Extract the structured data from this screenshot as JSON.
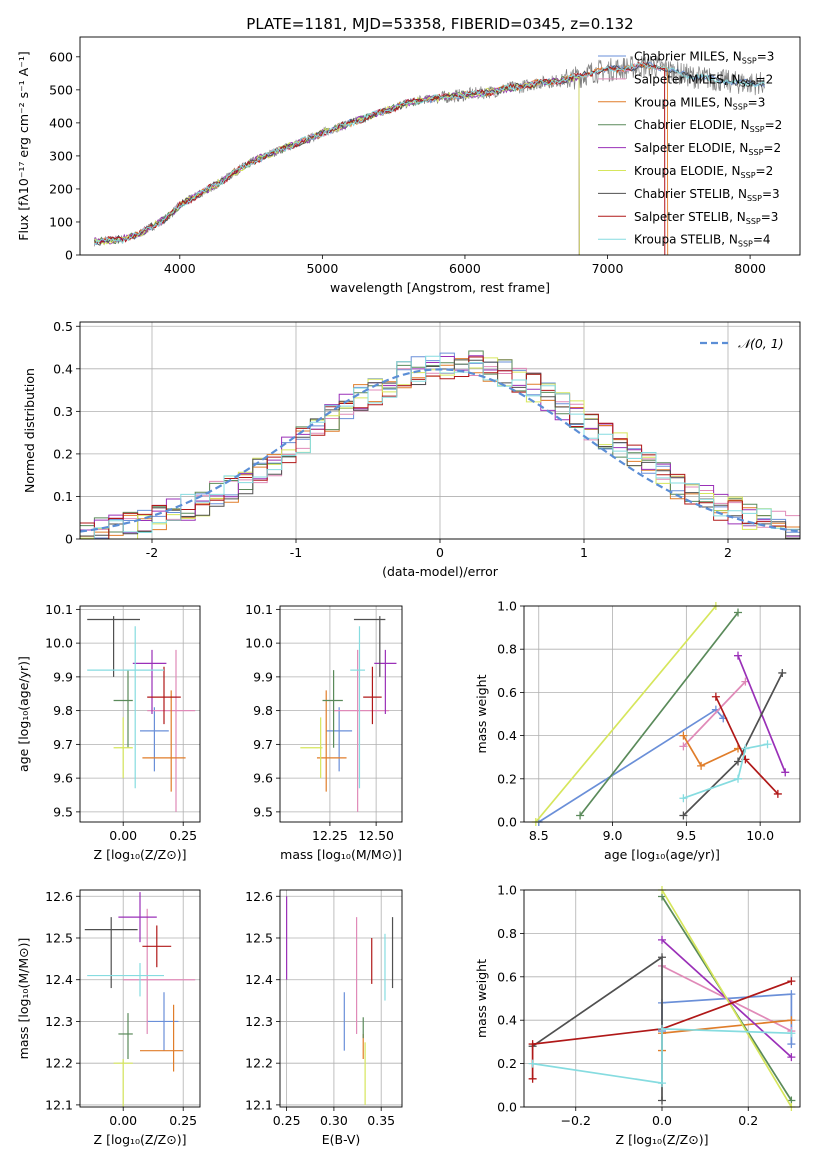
{
  "title": "PLATE=1181, MJD=53358, FIBERID=0345, z=0.132",
  "colors": {
    "Chabrier MILES": "#6a8fd8",
    "Salpeter MILES": "#e08ab8",
    "Kroupa MILES": "#e07d2a",
    "Chabrier ELODIE": "#5a8a5a",
    "Salpeter ELODIE": "#9a30b8",
    "Kroupa ELODIE": "#d6e65c",
    "Chabrier STELIB": "#505050",
    "Salpeter STELIB": "#b01818",
    "Kroupa STELIB": "#86dce0",
    "normal_curve": "#5b8ed6",
    "data": "#7f7f7f",
    "grid": "#b0b0b0"
  },
  "chart_data": [
    {
      "id": "spectrum",
      "type": "line",
      "title": "PLATE=1181, MJD=53358, FIBERID=0345, z=0.132",
      "xlabel": "wavelength [Angstrom, rest frame]",
      "ylabel": "Flux [fλ10⁻¹⁷ erg cm⁻² s⁻¹ A⁻¹]",
      "xlim": [
        3300,
        8350
      ],
      "ylim": [
        0,
        660
      ],
      "xticks": [
        4000,
        5000,
        6000,
        7000,
        8000
      ],
      "yticks": [
        0,
        100,
        200,
        300,
        400,
        500,
        600
      ],
      "grid": false,
      "legend_position": "right",
      "continuum": {
        "x": [
          3400,
          3600,
          3700,
          3800,
          3900,
          4000,
          4100,
          4200,
          4300,
          4400,
          4500,
          4600,
          4700,
          4800,
          4900,
          5000,
          5100,
          5200,
          5300,
          5400,
          5500,
          5600,
          5700,
          5800,
          5900,
          6000,
          6100,
          6200,
          6300,
          6400,
          6500,
          6600,
          6700,
          6800,
          6900,
          7000,
          7100,
          7200,
          7300,
          7400,
          7500,
          7600,
          7700,
          7800,
          7900,
          8000,
          8100
        ],
        "y": [
          40,
          48,
          60,
          85,
          110,
          150,
          175,
          200,
          225,
          255,
          280,
          300,
          318,
          335,
          350,
          370,
          385,
          400,
          415,
          430,
          445,
          460,
          470,
          475,
          480,
          485,
          490,
          495,
          505,
          510,
          520,
          525,
          530,
          540,
          555,
          560,
          565,
          570,
          575,
          565,
          550,
          540,
          535,
          528,
          522,
          520,
          520
        ]
      },
      "series": [
        {
          "name": "Chabrier MILES",
          "n_ssp": "3",
          "color": "#6a8fd8",
          "xmax": 8100
        },
        {
          "name": "Salpeter MILES",
          "n_ssp": "2",
          "color": "#e08ab8",
          "xmax": 7400
        },
        {
          "name": "Kroupa MILES",
          "n_ssp": "3",
          "color": "#e07d2a",
          "xmax": 7420
        },
        {
          "name": "Chabrier ELODIE",
          "n_ssp": "2",
          "color": "#5a8a5a",
          "xmax": 6800
        },
        {
          "name": "Salpeter ELODIE",
          "n_ssp": "2",
          "color": "#9a30b8",
          "xmax": 6800
        },
        {
          "name": "Kroupa ELODIE",
          "n_ssp": "2",
          "color": "#d6e65c",
          "xmax": 6800
        },
        {
          "name": "Chabrier STELIB",
          "n_ssp": "3",
          "color": "#505050",
          "xmax": 8100
        },
        {
          "name": "Salpeter STELIB",
          "n_ssp": "3",
          "color": "#b01818",
          "xmax": 7400
        },
        {
          "name": "Kroupa STELIB",
          "n_ssp": "4",
          "color": "#86dce0",
          "xmax": 8100
        }
      ]
    },
    {
      "id": "residuals",
      "type": "line",
      "xlabel": "(data-model)/error",
      "ylabel": "Normed distribution",
      "xlim": [
        -2.5,
        2.5
      ],
      "ylim": [
        0,
        0.51
      ],
      "xticks": [
        -2,
        -1,
        0,
        1,
        2
      ],
      "yticks": [
        0.0,
        0.1,
        0.2,
        0.3,
        0.4,
        0.5
      ],
      "grid": true,
      "legend": [
        {
          "name": "𝒩(0, 1)",
          "style": "dashed"
        }
      ],
      "legend_position": "upper right",
      "bins": {
        "start": -2.5,
        "width": 0.1
      }
    },
    {
      "id": "age_vs_Z",
      "type": "scatter",
      "xlabel": "Z [log₁₀(Z/Z⊙)]",
      "ylabel": "age  [log₁₀(age/yr)]",
      "xlim": [
        -0.18,
        0.32
      ],
      "ylim": [
        9.47,
        10.11
      ],
      "xticks": [
        "0.00",
        "0.25"
      ],
      "yticks": [
        "9.5",
        "9.6",
        "9.7",
        "9.8",
        "9.9",
        "10.0",
        "10.1"
      ],
      "grid": true,
      "points": [
        {
          "name": "Chabrier MILES",
          "x": 0.13,
          "y": 9.74,
          "xerr": [
            0.06,
            0.06
          ],
          "yerr": [
            0.12,
            0.07
          ]
        },
        {
          "name": "Salpeter MILES",
          "x": 0.22,
          "y": 9.8,
          "xerr": [
            0.12,
            0.08
          ],
          "yerr": [
            0.3,
            0.18
          ]
        },
        {
          "name": "Kroupa MILES",
          "x": 0.2,
          "y": 9.66,
          "xerr": [
            0.12,
            0.06
          ],
          "yerr": [
            0.1,
            0.2
          ]
        },
        {
          "name": "Chabrier ELODIE",
          "x": 0.02,
          "y": 9.83,
          "xerr": [
            0.06,
            0.02
          ],
          "yerr": [
            0.14,
            0.09
          ]
        },
        {
          "name": "Salpeter ELODIE",
          "x": 0.12,
          "y": 9.94,
          "xerr": [
            0.08,
            0.06
          ],
          "yerr": [
            0.15,
            0.04
          ]
        },
        {
          "name": "Kroupa ELODIE",
          "x": 0.0,
          "y": 9.69,
          "xerr": [
            0.04,
            0.04
          ],
          "yerr": [
            0.09,
            0.09
          ]
        },
        {
          "name": "Chabrier STELIB",
          "x": -0.04,
          "y": 10.07,
          "xerr": [
            0.11,
            0.11
          ],
          "yerr": [
            0.17,
            0.01
          ]
        },
        {
          "name": "Salpeter STELIB",
          "x": 0.17,
          "y": 9.84,
          "xerr": [
            0.07,
            0.07
          ],
          "yerr": [
            0.08,
            0.09
          ]
        },
        {
          "name": "Kroupa STELIB",
          "x": 0.05,
          "y": 9.92,
          "xerr": [
            0.2,
            0.12
          ],
          "yerr": [
            0.35,
            0.13
          ]
        }
      ]
    },
    {
      "id": "age_vs_mass",
      "type": "scatter",
      "xlabel": "mass [log₁₀(M/M⊙)]",
      "xlim": [
        11.98,
        12.64
      ],
      "ylim": [
        9.47,
        10.11
      ],
      "xticks": [
        "12.25",
        "12.50"
      ],
      "yticks": [
        "9.5",
        "9.6",
        "9.7",
        "9.8",
        "9.9",
        "10.0",
        "10.1"
      ],
      "grid": true,
      "points": [
        {
          "name": "Chabrier MILES",
          "x": 12.3,
          "y": 9.74,
          "xerr": [
            0.07,
            0.07
          ],
          "yerr": [
            0.12,
            0.07
          ]
        },
        {
          "name": "Salpeter MILES",
          "x": 12.4,
          "y": 9.8,
          "xerr": [
            0.13,
            0.17
          ],
          "yerr": [
            0.3,
            0.18
          ]
        },
        {
          "name": "Kroupa MILES",
          "x": 12.23,
          "y": 9.66,
          "xerr": [
            0.05,
            0.11
          ],
          "yerr": [
            0.1,
            0.2
          ]
        },
        {
          "name": "Chabrier ELODIE",
          "x": 12.27,
          "y": 9.83,
          "xerr": [
            0.06,
            0.05
          ],
          "yerr": [
            0.14,
            0.09
          ]
        },
        {
          "name": "Salpeter ELODIE",
          "x": 12.55,
          "y": 9.94,
          "xerr": [
            0.06,
            0.06
          ],
          "yerr": [
            0.15,
            0.04
          ]
        },
        {
          "name": "Kroupa ELODIE",
          "x": 12.2,
          "y": 9.69,
          "xerr": [
            0.11,
            0.01
          ],
          "yerr": [
            0.09,
            0.09
          ]
        },
        {
          "name": "Chabrier STELIB",
          "x": 12.52,
          "y": 10.07,
          "xerr": [
            0.14,
            0.03
          ],
          "yerr": [
            0.17,
            0.01
          ]
        },
        {
          "name": "Salpeter STELIB",
          "x": 12.48,
          "y": 9.84,
          "xerr": [
            0.05,
            0.05
          ],
          "yerr": [
            0.08,
            0.09
          ]
        },
        {
          "name": "Kroupa STELIB",
          "x": 12.41,
          "y": 9.92,
          "xerr": [
            0.05,
            0.03
          ],
          "yerr": [
            0.35,
            0.13
          ]
        }
      ]
    },
    {
      "id": "weight_vs_age",
      "type": "line",
      "xlabel": "age  [log₁₀(age/yr)]",
      "ylabel": "mass weight",
      "xlim": [
        8.4,
        10.27
      ],
      "ylim": [
        0,
        1.0
      ],
      "xticks": [
        "8.5",
        "9.0",
        "9.5",
        "10.0"
      ],
      "yticks": [
        "0.0",
        "0.2",
        "0.4",
        "0.6",
        "0.8",
        "1.0"
      ],
      "grid": true,
      "series": [
        {
          "name": "Chabrier MILES",
          "x": [
            8.5,
            9.7,
            9.75
          ],
          "y": [
            0.0,
            0.52,
            0.48
          ]
        },
        {
          "name": "Salpeter MILES",
          "x": [
            9.48,
            9.9
          ],
          "y": [
            0.35,
            0.65
          ]
        },
        {
          "name": "Kroupa MILES",
          "x": [
            9.48,
            9.6,
            9.85
          ],
          "y": [
            0.4,
            0.26,
            0.34
          ]
        },
        {
          "name": "Chabrier ELODIE",
          "x": [
            8.78,
            9.85
          ],
          "y": [
            0.03,
            0.97
          ]
        },
        {
          "name": "Salpeter ELODIE",
          "x": [
            9.85,
            10.17
          ],
          "y": [
            0.77,
            0.23
          ]
        },
        {
          "name": "Kroupa ELODIE",
          "x": [
            8.48,
            9.7
          ],
          "y": [
            0.0,
            1.0
          ]
        },
        {
          "name": "Chabrier STELIB",
          "x": [
            9.48,
            9.85,
            10.15
          ],
          "y": [
            0.03,
            0.28,
            0.69
          ]
        },
        {
          "name": "Salpeter STELIB",
          "x": [
            9.7,
            9.9,
            10.12
          ],
          "y": [
            0.58,
            0.29,
            0.13
          ]
        },
        {
          "name": "Kroupa STELIB",
          "x": [
            9.48,
            9.85,
            9.9,
            10.05
          ],
          "y": [
            0.11,
            0.2,
            0.34,
            0.36
          ]
        }
      ]
    },
    {
      "id": "mass_vs_Z",
      "type": "scatter",
      "xlabel": "Z [log₁₀(Z/Z⊙)]",
      "ylabel": "mass [log₁₀(M/M⊙)]",
      "xlim": [
        -0.18,
        0.32
      ],
      "ylim": [
        12.095,
        12.615
      ],
      "xticks": [
        "0.00",
        "0.25"
      ],
      "yticks": [
        "12.1",
        "12.2",
        "12.3",
        "12.4",
        "12.5",
        "12.6"
      ],
      "grid": true,
      "points": [
        {
          "name": "Chabrier MILES",
          "x": 0.17,
          "y": 12.3,
          "xerr": [
            0.07,
            0.06
          ],
          "yerr": [
            0.07,
            0.07
          ]
        },
        {
          "name": "Salpeter MILES",
          "x": 0.1,
          "y": 12.4,
          "xerr": [
            0.1,
            0.2
          ],
          "yerr": [
            0.13,
            0.17
          ]
        },
        {
          "name": "Kroupa MILES",
          "x": 0.21,
          "y": 12.23,
          "xerr": [
            0.14,
            0.04
          ],
          "yerr": [
            0.05,
            0.11
          ]
        },
        {
          "name": "Chabrier ELODIE",
          "x": 0.02,
          "y": 12.27,
          "xerr": [
            0.04,
            0.02
          ],
          "yerr": [
            0.06,
            0.05
          ]
        },
        {
          "name": "Salpeter ELODIE",
          "x": 0.07,
          "y": 12.55,
          "xerr": [
            0.09,
            0.07
          ],
          "yerr": [
            0.06,
            0.06
          ]
        },
        {
          "name": "Kroupa ELODIE",
          "x": 0.0,
          "y": 12.2,
          "xerr": [
            0.04,
            0.04
          ],
          "yerr": [
            0.11,
            0.01
          ]
        },
        {
          "name": "Chabrier STELIB",
          "x": -0.05,
          "y": 12.52,
          "xerr": [
            0.11,
            0.11
          ],
          "yerr": [
            0.14,
            0.03
          ]
        },
        {
          "name": "Salpeter STELIB",
          "x": 0.14,
          "y": 12.48,
          "xerr": [
            0.06,
            0.06
          ],
          "yerr": [
            0.05,
            0.05
          ]
        },
        {
          "name": "Kroupa STELIB",
          "x": 0.07,
          "y": 12.41,
          "xerr": [
            0.22,
            0.1
          ],
          "yerr": [
            0.05,
            0.03
          ]
        }
      ]
    },
    {
      "id": "mass_vs_ebv",
      "type": "scatter",
      "xlabel": "E(B-V)",
      "xlim": [
        0.243,
        0.372
      ],
      "ylim": [
        12.095,
        12.615
      ],
      "xticks": [
        "0.25",
        "0.30",
        "0.35"
      ],
      "yticks": [
        "12.1",
        "12.2",
        "12.3",
        "12.4",
        "12.5",
        "12.6"
      ],
      "grid": true,
      "points": [
        {
          "name": "Chabrier MILES",
          "x": 0.311,
          "y": 12.3,
          "xerr": [
            0,
            0
          ],
          "yerr": [
            0.07,
            0.07
          ]
        },
        {
          "name": "Salpeter MILES",
          "x": 0.324,
          "y": 12.4,
          "xerr": [
            0,
            0
          ],
          "yerr": [
            0.13,
            0.15
          ]
        },
        {
          "name": "Kroupa MILES",
          "x": 0.331,
          "y": 12.23,
          "xerr": [
            0,
            0
          ],
          "yerr": [
            0.02,
            0.04
          ]
        },
        {
          "name": "Chabrier ELODIE",
          "x": 0.331,
          "y": 12.27,
          "xerr": [
            0,
            0
          ],
          "yerr": [
            0.01,
            0.04
          ]
        },
        {
          "name": "Salpeter ELODIE",
          "x": 0.25,
          "y": 12.5,
          "xerr": [
            0,
            0
          ],
          "yerr": [
            0.1,
            0.1
          ]
        },
        {
          "name": "Kroupa ELODIE",
          "x": 0.333,
          "y": 12.2,
          "xerr": [
            0,
            0
          ],
          "yerr": [
            0.1,
            0.05
          ]
        },
        {
          "name": "Chabrier STELIB",
          "x": 0.362,
          "y": 12.46,
          "xerr": [
            0,
            0
          ],
          "yerr": [
            0.08,
            0.09
          ]
        },
        {
          "name": "Salpeter STELIB",
          "x": 0.34,
          "y": 12.45,
          "xerr": [
            0,
            0
          ],
          "yerr": [
            0.06,
            0.05
          ]
        },
        {
          "name": "Kroupa STELIB",
          "x": 0.354,
          "y": 12.43,
          "xerr": [
            0,
            0
          ],
          "yerr": [
            0.08,
            0.08
          ]
        }
      ]
    },
    {
      "id": "weight_vs_Z",
      "type": "line",
      "xlabel": "Z [log₁₀(Z/Z⊙)]",
      "ylabel": "mass weight",
      "xlim": [
        -0.32,
        0.32
      ],
      "ylim": [
        0,
        1.0
      ],
      "xticks": [
        "−0.2",
        "0.0",
        "0.2"
      ],
      "yticks": [
        "0.0",
        "0.2",
        "0.4",
        "0.6",
        "0.8",
        "1.0"
      ],
      "grid": true,
      "series": [
        {
          "name": "Chabrier MILES",
          "x": [
            0.0,
            0.0,
            0.3,
            0.3
          ],
          "y": [
            0.35,
            0.48,
            0.52,
            0.29
          ]
        },
        {
          "name": "Salpeter MILES",
          "x": [
            0.0,
            0.3
          ],
          "y": [
            0.65,
            0.35
          ]
        },
        {
          "name": "Kroupa MILES",
          "x": [
            0.0,
            0.0,
            0.3
          ],
          "y": [
            0.26,
            0.34,
            0.4
          ]
        },
        {
          "name": "Chabrier ELODIE",
          "x": [
            0.0,
            0.3
          ],
          "y": [
            0.97,
            0.03
          ]
        },
        {
          "name": "Salpeter ELODIE",
          "x": [
            0.0,
            0.3
          ],
          "y": [
            0.77,
            0.23
          ]
        },
        {
          "name": "Kroupa ELODIE",
          "x": [
            0.0,
            0.3
          ],
          "y": [
            1.0,
            0.0
          ]
        },
        {
          "name": "Chabrier STELIB",
          "x": [
            -0.3,
            0.0,
            0.0
          ],
          "y": [
            0.28,
            0.69,
            0.03
          ]
        },
        {
          "name": "Salpeter STELIB",
          "x": [
            -0.3,
            -0.3,
            0.0,
            0.3
          ],
          "y": [
            0.13,
            0.29,
            0.36,
            0.58
          ]
        },
        {
          "name": "Kroupa STELIB",
          "x": [
            -0.3,
            0.0,
            0.0,
            0.3
          ],
          "y": [
            0.2,
            0.11,
            0.36,
            0.34
          ]
        }
      ]
    }
  ]
}
